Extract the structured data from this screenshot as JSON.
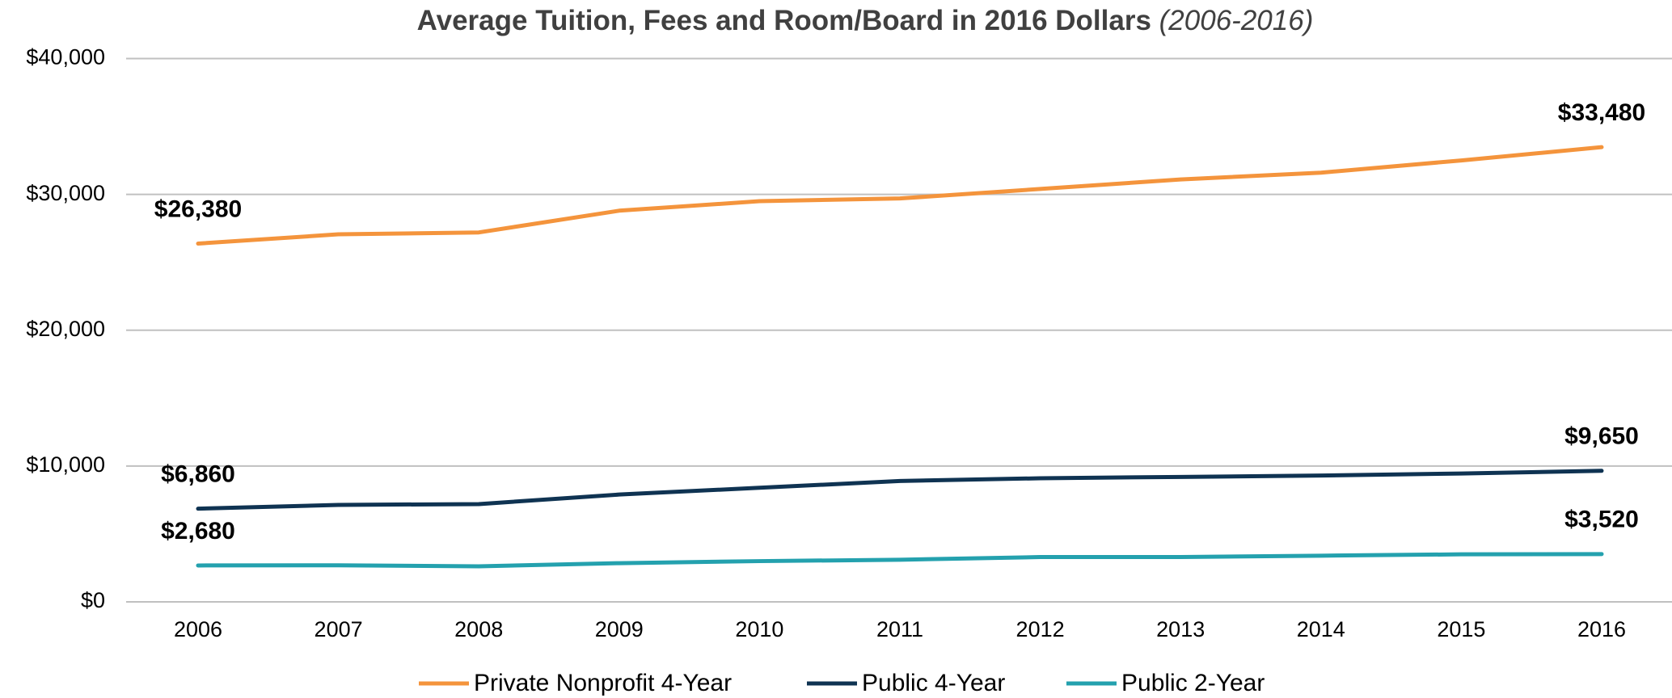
{
  "chart_data": {
    "type": "line",
    "title": "Average Tuition, Fees and Room/Board in 2016 Dollars",
    "subtitle": "(2006-2016)",
    "categories": [
      "2006",
      "2007",
      "2008",
      "2009",
      "2010",
      "2011",
      "2012",
      "2013",
      "2014",
      "2015",
      "2016"
    ],
    "series": [
      {
        "name": "Private Nonprofit 4-Year",
        "color": "#f4943c",
        "values": [
          26380,
          27060,
          27200,
          28800,
          29500,
          29700,
          30400,
          31100,
          31600,
          32500,
          33480
        ],
        "value_labels": [
          "$26,380",
          null,
          null,
          null,
          null,
          null,
          null,
          null,
          null,
          null,
          "$33,480"
        ]
      },
      {
        "name": "Public 4-Year",
        "color": "#0f3352",
        "values": [
          6860,
          7140,
          7200,
          7900,
          8400,
          8900,
          9100,
          9200,
          9300,
          9450,
          9650
        ],
        "value_labels": [
          "$6,860",
          null,
          null,
          null,
          null,
          null,
          null,
          null,
          null,
          null,
          "$9,650"
        ]
      },
      {
        "name": "Public 2-Year",
        "color": "#24a1ae",
        "values": [
          2680,
          2690,
          2620,
          2850,
          3000,
          3100,
          3300,
          3300,
          3400,
          3500,
          3520
        ],
        "value_labels": [
          "$2,680",
          null,
          null,
          null,
          null,
          null,
          null,
          null,
          null,
          null,
          "$3,520"
        ]
      }
    ],
    "ylim": [
      0,
      40000
    ],
    "yticks": [
      {
        "value": 0,
        "label": "$0"
      },
      {
        "value": 10000,
        "label": "$10,000"
      },
      {
        "value": 20000,
        "label": "$20,000"
      },
      {
        "value": 30000,
        "label": "$30,000"
      },
      {
        "value": 40000,
        "label": "$40,000"
      }
    ],
    "grid": true,
    "legend": "bottom"
  }
}
